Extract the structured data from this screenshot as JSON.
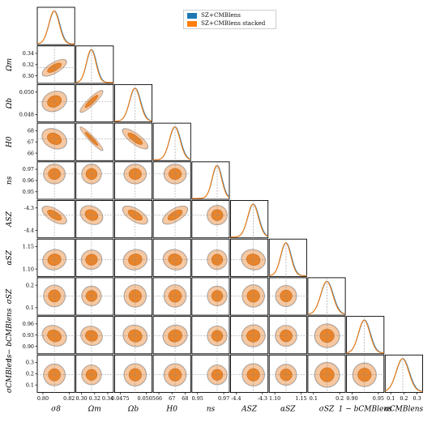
{
  "chart_data": {
    "type": "scatter",
    "subtype": "corner-plot",
    "series": [
      {
        "name": "SZ+CMBlens",
        "color": "#1f77b4"
      },
      {
        "name": "SZ+CMBlens stacked",
        "color": "#ff7f0e"
      }
    ],
    "legend_placement": "top-center",
    "parameters": [
      {
        "label": "σ8",
        "fiducial": 0.811,
        "ticks": [
          "0.80",
          "0.82"
        ],
        "range": [
          0.795,
          0.83
        ]
      },
      {
        "label": "Ωm",
        "fiducial": 0.315,
        "ticks": [
          "0.30",
          "0.32",
          "0.34"
        ],
        "range": [
          0.29,
          0.35
        ]
      },
      {
        "label": "Ωb",
        "fiducial": 0.0493,
        "ticks": [
          "0.0475",
          "0.0505"
        ],
        "range": [
          0.046,
          0.052
        ]
      },
      {
        "label": "H0",
        "fiducial": 67.4,
        "ticks": [
          "66",
          "67",
          "68"
        ],
        "range": [
          65.3,
          68.9
        ]
      },
      {
        "label": "ns",
        "fiducial": 0.965,
        "ticks": [
          "0.95",
          "0.97"
        ],
        "range": [
          0.938,
          0.978
        ]
      },
      {
        "label": "ASZ",
        "fiducial": -4.31,
        "ticks": [
          "-4.4",
          "-4.3"
        ],
        "range": [
          -4.45,
          -4.22
        ]
      },
      {
        "label": "αSZ",
        "fiducial": 1.12,
        "ticks": [
          "1.10",
          "1.15"
        ],
        "range": [
          1.075,
          1.175
        ]
      },
      {
        "label": "σSZ",
        "fiducial": 0.173,
        "ticks": [
          "0.1",
          "0.2"
        ],
        "range": [
          0.05,
          0.29
        ]
      },
      {
        "label": "1 − bCMBlens",
        "fiducial": 0.925,
        "ticks": [
          "0.90",
          "0.95"
        ],
        "range": [
          0.865,
          0.99
        ]
      },
      {
        "label": "σCMBlens",
        "fiducial": 0.2,
        "ticks": [
          "0.1",
          "0.2",
          "0.3"
        ],
        "range": [
          0.04,
          0.38
        ]
      }
    ],
    "y_tick_labels": {
      "Ωm": [
        "0.34",
        "0.32",
        "0.30"
      ],
      "Ωb": [
        "0.050",
        "0.048"
      ],
      "H0": [
        "68",
        "67",
        "66"
      ],
      "ns": [
        "0.97",
        "0.96",
        "0.95"
      ],
      "ASZ": [
        "-4.3",
        "-4.4"
      ],
      "αSZ": [
        "1.15",
        "1.10"
      ],
      "σSZ": [
        "0.2",
        "0.1"
      ],
      "1 − bCMBlens": [
        "0.96",
        "0.93",
        "0.90"
      ],
      "σCMBlens": [
        "0.3",
        "0.2",
        "0.1"
      ]
    },
    "correlations": {
      "Ωm|σ8": 0.65,
      "Ωb|σ8": 0.45,
      "Ωb|Ωm": 0.85,
      "H0|σ8": -0.5,
      "H0|Ωm": -0.92,
      "H0|Ωb": -0.75,
      "ns|σ8": 0.0,
      "ns|Ωm": 0.0,
      "ns|Ωb": 0.0,
      "ns|H0": 0.0,
      "ASZ|σ8": -0.6,
      "ASZ|Ωm": -0.45,
      "ASZ|Ωb": -0.6,
      "ASZ|H0": 0.6,
      "ASZ|ns": 0.1,
      "αSZ|σ8": 0.3,
      "αSZ|Ωm": 0.2,
      "αSZ|Ωb": 0.3,
      "αSZ|H0": -0.3,
      "αSZ|ns": 0.0,
      "αSZ|ASZ": -0.3,
      "σSZ|σ8": 0.0,
      "σSZ|Ωm": 0.0,
      "σSZ|Ωb": 0.0,
      "σSZ|H0": 0.0,
      "σSZ|ns": 0.0,
      "σSZ|ASZ": 0.0,
      "σSZ|αSZ": 0.0,
      "1 − bCMBlens|σ8": -0.4,
      "1 − bCMBlens|Ωm": -0.3,
      "1 − bCMBlens|Ωb": -0.3,
      "1 − bCMBlens|H0": 0.3,
      "1 − bCMBlens|ns": 0.0,
      "1 − bCMBlens|ASZ": 0.2,
      "1 − bCMBlens|αSZ": -0.1,
      "1 − bCMBlens|σSZ": 0.0,
      "σCMBlens|σ8": 0.0,
      "σCMBlens|Ωm": 0.0,
      "σCMBlens|Ωb": 0.0,
      "σCMBlens|H0": 0.0,
      "σCMBlens|ns": 0.0,
      "σCMBlens|ASZ": 0.0,
      "σCMBlens|αSZ": 0.0,
      "σCMBlens|σSZ": 0.0,
      "σCMBlens|1 − bCMBlens": 0.0
    }
  },
  "colors": {
    "blue": "#1f77b4",
    "orange": "#ff7f0e",
    "orange_fill_outer": "#f5c9a3",
    "orange_fill_inner": "#e8842a",
    "line_gray": "#8c8c8c"
  }
}
